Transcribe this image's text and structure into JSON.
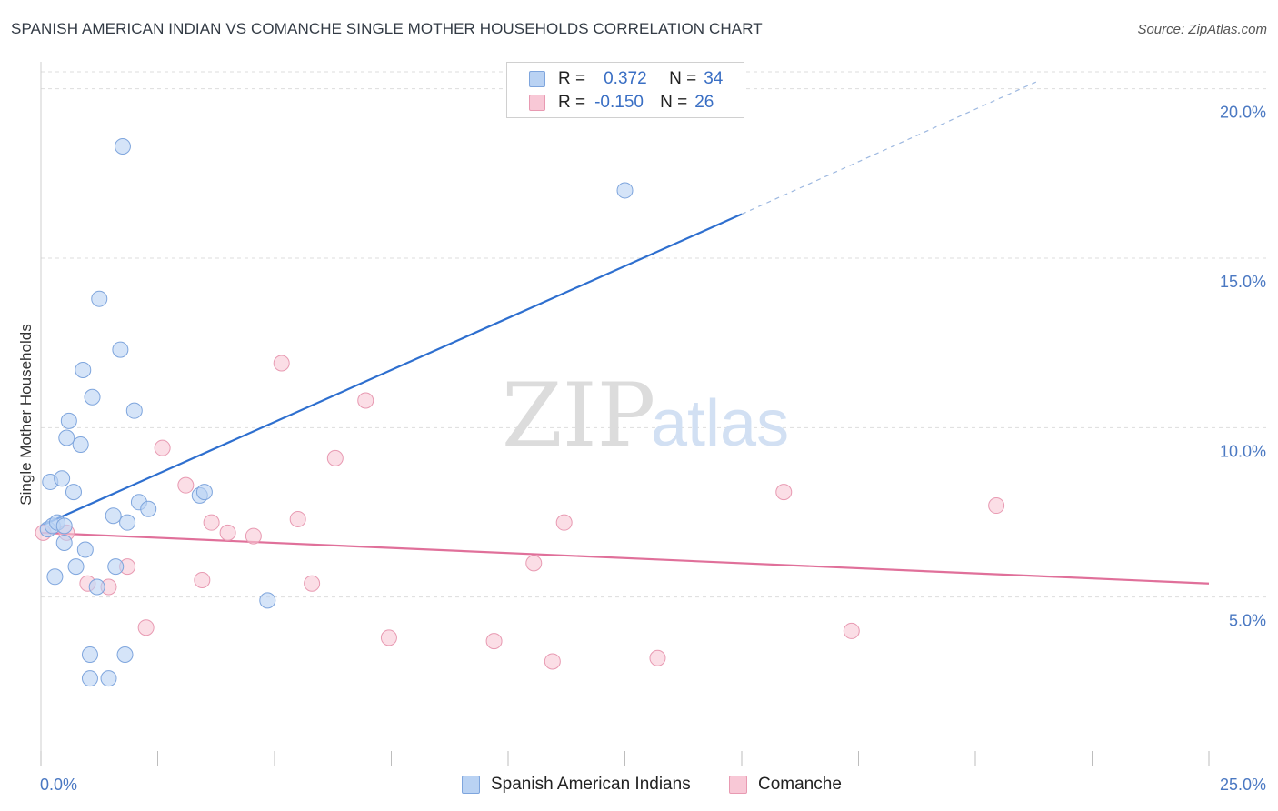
{
  "title": "SPANISH AMERICAN INDIAN VS COMANCHE SINGLE MOTHER HOUSEHOLDS CORRELATION CHART",
  "source": "Source: ZipAtlas.com",
  "watermark": {
    "zip": "ZIP",
    "atlas": "atlas"
  },
  "colors": {
    "blue_fill": "#b9d2f3",
    "blue_stroke": "#7ea5dd",
    "blue_line": "#2e6fcf",
    "pink_fill": "#f8c8d6",
    "pink_stroke": "#e89ab2",
    "pink_line": "#e0709a",
    "grid": "#dddddd",
    "axis_text": "#4a78c2"
  },
  "legend_top": {
    "rows": [
      {
        "r_label": "R =",
        "r_value": "0.372",
        "n_label": "N =",
        "n_value": "34"
      },
      {
        "r_label": "R =",
        "r_value": "-0.150",
        "n_label": "N =",
        "n_value": "26"
      }
    ]
  },
  "legend_bottom": [
    {
      "label": "Spanish American Indians"
    },
    {
      "label": "Comanche"
    }
  ],
  "chart_data": {
    "type": "scatter",
    "title": "SPANISH AMERICAN INDIAN VS COMANCHE SINGLE MOTHER HOUSEHOLDS CORRELATION CHART",
    "xlabel": "",
    "ylabel": "Single Mother Households",
    "xlim": [
      0,
      25
    ],
    "ylim": [
      0,
      20.5
    ],
    "x_tick_labels": [
      {
        "value": 0,
        "label": "0.0%"
      },
      {
        "value": 25,
        "label": "25.0%"
      }
    ],
    "y_tick_labels": [
      {
        "value": 5,
        "label": "5.0%"
      },
      {
        "value": 10,
        "label": "10.0%"
      },
      {
        "value": 15,
        "label": "15.0%"
      },
      {
        "value": 20,
        "label": "20.0%"
      }
    ],
    "x_minor_ticks": [
      0,
      2.5,
      5,
      7.5,
      10,
      12.5,
      15,
      17.5,
      20,
      22.5,
      25
    ],
    "series": [
      {
        "name": "Spanish American Indians",
        "r": 0.372,
        "n": 34,
        "trend": {
          "x0": 0,
          "y0": 7.1,
          "x1": 15.0,
          "y1": 16.3,
          "dash_to_x": 21.3,
          "dash_to_y": 20.2
        },
        "points": [
          [
            0.15,
            7.0
          ],
          [
            0.25,
            7.1
          ],
          [
            0.35,
            7.2
          ],
          [
            0.5,
            7.1
          ],
          [
            0.2,
            8.4
          ],
          [
            0.45,
            8.5
          ],
          [
            0.7,
            8.1
          ],
          [
            0.55,
            9.7
          ],
          [
            0.6,
            10.2
          ],
          [
            0.85,
            9.5
          ],
          [
            0.9,
            11.7
          ],
          [
            1.1,
            10.9
          ],
          [
            1.25,
            13.8
          ],
          [
            1.7,
            12.3
          ],
          [
            2.0,
            10.5
          ],
          [
            1.75,
            18.3
          ],
          [
            0.5,
            6.6
          ],
          [
            0.95,
            6.4
          ],
          [
            0.75,
            5.9
          ],
          [
            0.3,
            5.6
          ],
          [
            1.6,
            5.9
          ],
          [
            1.2,
            5.3
          ],
          [
            1.55,
            7.4
          ],
          [
            1.85,
            7.2
          ],
          [
            2.1,
            7.8
          ],
          [
            2.3,
            7.6
          ],
          [
            3.4,
            8.0
          ],
          [
            3.5,
            8.1
          ],
          [
            4.85,
            4.9
          ],
          [
            1.05,
            3.3
          ],
          [
            1.8,
            3.3
          ],
          [
            1.05,
            2.6
          ],
          [
            1.45,
            2.6
          ],
          [
            12.5,
            17.0
          ]
        ]
      },
      {
        "name": "Comanche",
        "r": -0.15,
        "n": 26,
        "trend": {
          "x0": 0,
          "y0": 6.9,
          "x1": 25.0,
          "y1": 5.4
        },
        "points": [
          [
            0.05,
            6.9
          ],
          [
            0.55,
            6.9
          ],
          [
            1.0,
            5.4
          ],
          [
            1.45,
            5.3
          ],
          [
            1.85,
            5.9
          ],
          [
            2.25,
            4.1
          ],
          [
            2.6,
            9.4
          ],
          [
            3.1,
            8.3
          ],
          [
            3.45,
            5.5
          ],
          [
            3.65,
            7.2
          ],
          [
            4.0,
            6.9
          ],
          [
            4.55,
            6.8
          ],
          [
            5.15,
            11.9
          ],
          [
            5.5,
            7.3
          ],
          [
            5.8,
            5.4
          ],
          [
            6.3,
            9.1
          ],
          [
            6.95,
            10.8
          ],
          [
            7.45,
            3.8
          ],
          [
            9.7,
            3.7
          ],
          [
            10.55,
            6.0
          ],
          [
            10.95,
            3.1
          ],
          [
            11.2,
            7.2
          ],
          [
            13.2,
            3.2
          ],
          [
            15.9,
            8.1
          ],
          [
            17.35,
            4.0
          ],
          [
            20.45,
            7.7
          ]
        ]
      }
    ]
  }
}
